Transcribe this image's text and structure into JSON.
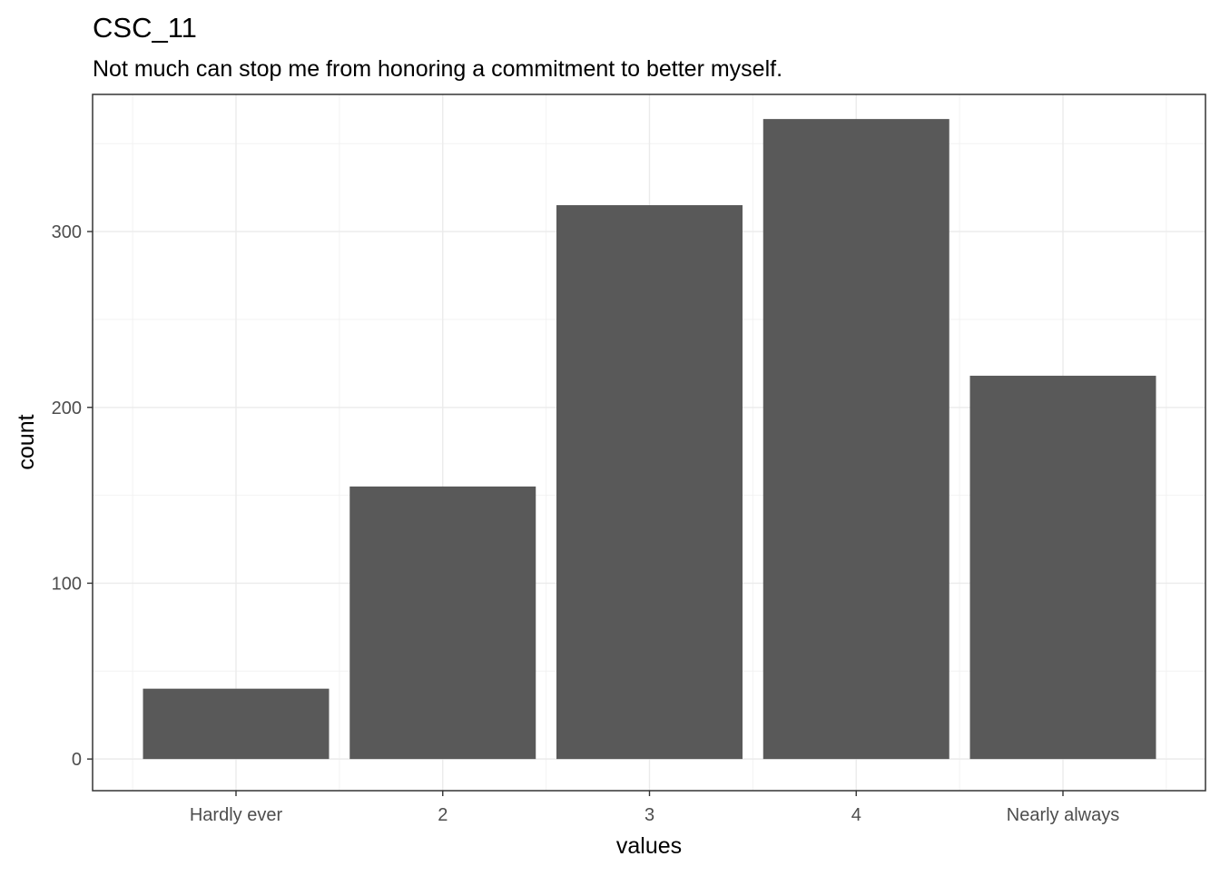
{
  "chart_data": {
    "type": "bar",
    "title": "CSC_11",
    "subtitle": "Not much can stop me from honoring a commitment to better myself.",
    "xlabel": "values",
    "ylabel": "count",
    "categories": [
      "Hardly ever",
      "2",
      "3",
      "4",
      "Nearly always"
    ],
    "values": [
      40,
      155,
      315,
      364,
      218
    ],
    "ylim": [
      -18,
      378
    ],
    "yticks": [
      0,
      100,
      200,
      300
    ],
    "grid": true,
    "bar_color": "#595959"
  }
}
